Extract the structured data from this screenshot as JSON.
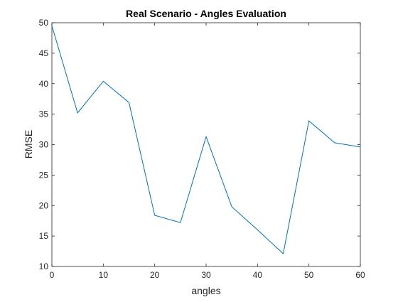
{
  "chart_data": {
    "type": "line",
    "title": "Real Scenario - Angles Evaluation",
    "xlabel": "angles",
    "ylabel": "RMSE",
    "xlim": [
      0,
      60
    ],
    "ylim": [
      10,
      50
    ],
    "xticks": [
      0,
      10,
      20,
      30,
      40,
      50,
      60
    ],
    "yticks": [
      10,
      15,
      20,
      25,
      30,
      35,
      40,
      45,
      50
    ],
    "grid": false,
    "box": true,
    "series": [
      {
        "color": "#0072BD",
        "x": [
          0,
          5,
          10,
          15,
          20,
          25,
          30,
          35,
          40,
          45,
          50,
          55,
          60
        ],
        "y": [
          49.5,
          35.2,
          40.4,
          36.9,
          18.4,
          17.2,
          31.3,
          19.8,
          16.0,
          12.1,
          33.9,
          30.3,
          29.6
        ]
      }
    ]
  }
}
